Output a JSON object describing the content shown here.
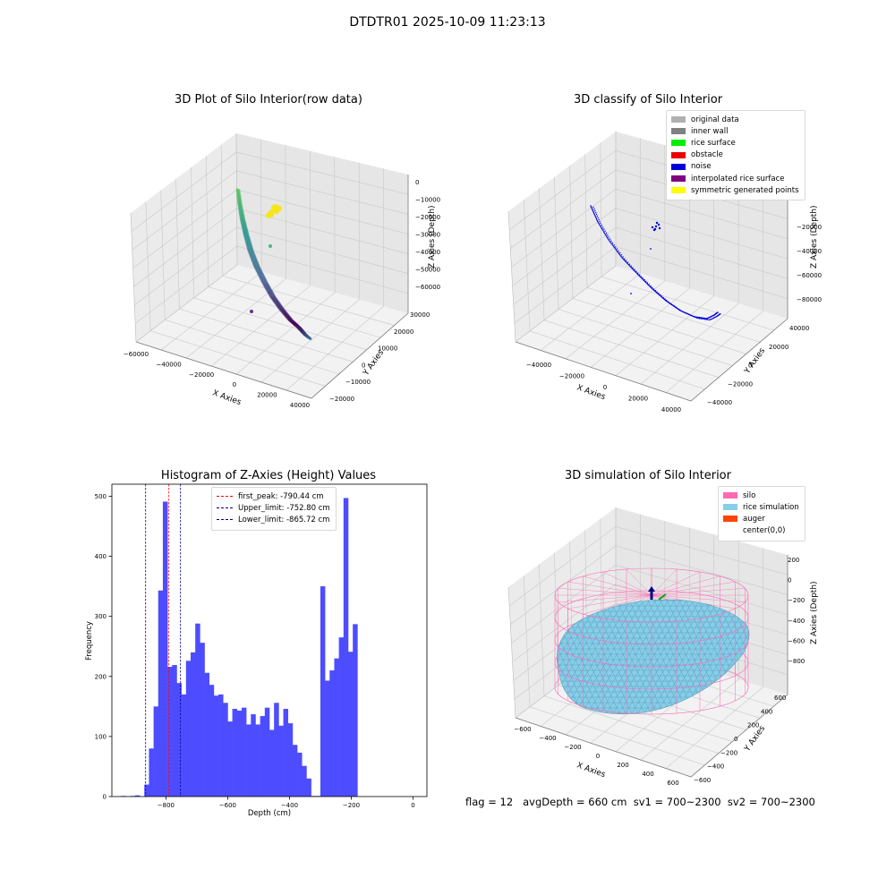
{
  "figure": {
    "suptitle": "DTDTR01 2025-10-09 11:23:13"
  },
  "panels": {
    "raw": {
      "title": "3D Plot of Silo Interior(row data)",
      "xlabel": "X Axies",
      "ylabel": "Y Axies",
      "zlabel": "Z Axies (Depth)",
      "xticks": [
        "−60000",
        "−40000",
        "−20000",
        "0",
        "20000",
        "40000"
      ],
      "yticks": [
        "−20000",
        "−10000",
        "0",
        "10000",
        "20000",
        "30000"
      ],
      "zticks": [
        "0",
        "−10000",
        "−20000",
        "−30000",
        "−40000",
        "−50000",
        "−60000"
      ]
    },
    "classify": {
      "title": "3D classify of Silo Interior",
      "xlabel": "X Axies",
      "ylabel": "Y Axies",
      "zlabel": "Z Axies (Depth)",
      "xticks": [
        "−40000",
        "−20000",
        "0",
        "20000",
        "40000"
      ],
      "yticks": [
        "−40000",
        "−20000",
        "0",
        "20000",
        "40000"
      ],
      "zticks": [
        "−20000",
        "−40000",
        "−60000",
        "−80000"
      ],
      "legend": [
        {
          "label": "original data",
          "color": "#b0b0b0"
        },
        {
          "label": "inner wall",
          "color": "#808080"
        },
        {
          "label": "rice surface",
          "color": "#00ee00"
        },
        {
          "label": "obstacle",
          "color": "#ee0000"
        },
        {
          "label": "noise",
          "color": "#0000dd"
        },
        {
          "label": "interpolated rice surface",
          "color": "#800080"
        },
        {
          "label": "symmetric generated points",
          "color": "#ffff00"
        }
      ]
    },
    "histogram": {
      "title": "Histogram of Z-Axies (Height) Values",
      "xlabel": "Depth (cm)",
      "ylabel": "Frequency",
      "legend": [
        {
          "label": "first_peak: -790.44 cm",
          "color": "#ff0000"
        },
        {
          "label": "Upper_limit: -752.80 cm",
          "color": "#00008b"
        },
        {
          "label": "Lower_limit: -865.72 cm",
          "color": "#00008b"
        }
      ]
    },
    "simulation": {
      "title": "3D simulation of Silo Interior",
      "xlabel": "X Axies",
      "ylabel": "Y Axies",
      "zlabel": "Z Axies (Depth)",
      "xticks": [
        "−600",
        "−400",
        "−200",
        "0",
        "200",
        "400",
        "600"
      ],
      "yticks": [
        "−600",
        "−400",
        "−200",
        "0",
        "200",
        "400",
        "600"
      ],
      "zticks": [
        "200",
        "0",
        "−200",
        "−400",
        "−600",
        "−800"
      ],
      "legend": [
        {
          "label": "silo",
          "color": "#ff69b4"
        },
        {
          "label": "rice simulation",
          "color": "#87ceeb"
        },
        {
          "label": "auger",
          "color": "#ff4500"
        },
        {
          "label": "center(0,0)",
          "color": ""
        }
      ],
      "footer": "flag = 12   avgDepth = 660 cm  sv1 = 700~2300  sv2 = 700~2300"
    }
  },
  "chart_data": [
    {
      "type": "histogram",
      "title": "Histogram of Z-Axies (Height) Values",
      "xlabel": "Depth (cm)",
      "ylabel": "Frequency",
      "xlim": [
        -975,
        45
      ],
      "ylim": [
        0,
        520
      ],
      "xticks": [
        -800,
        -600,
        -400,
        -200,
        0
      ],
      "yticks": [
        0,
        100,
        200,
        300,
        400,
        500
      ],
      "grid": false,
      "legend_position": "top-center",
      "bin_width": 15,
      "bins": [
        {
          "x0": -945,
          "count": 1
        },
        {
          "x0": -930,
          "count": 0
        },
        {
          "x0": -915,
          "count": 1
        },
        {
          "x0": -900,
          "count": 2
        },
        {
          "x0": -885,
          "count": 0
        },
        {
          "x0": -870,
          "count": 20
        },
        {
          "x0": -855,
          "count": 80
        },
        {
          "x0": -840,
          "count": 150
        },
        {
          "x0": -825,
          "count": 343
        },
        {
          "x0": -810,
          "count": 491
        },
        {
          "x0": -795,
          "count": 216
        },
        {
          "x0": -780,
          "count": 219
        },
        {
          "x0": -765,
          "count": 189
        },
        {
          "x0": -750,
          "count": 170
        },
        {
          "x0": -735,
          "count": 226
        },
        {
          "x0": -720,
          "count": 240
        },
        {
          "x0": -705,
          "count": 288
        },
        {
          "x0": -690,
          "count": 256
        },
        {
          "x0": -675,
          "count": 206
        },
        {
          "x0": -660,
          "count": 186
        },
        {
          "x0": -645,
          "count": 168
        },
        {
          "x0": -630,
          "count": 170
        },
        {
          "x0": -615,
          "count": 156
        },
        {
          "x0": -600,
          "count": 125
        },
        {
          "x0": -585,
          "count": 146
        },
        {
          "x0": -570,
          "count": 143
        },
        {
          "x0": -555,
          "count": 148
        },
        {
          "x0": -540,
          "count": 120
        },
        {
          "x0": -525,
          "count": 137
        },
        {
          "x0": -510,
          "count": 120
        },
        {
          "x0": -495,
          "count": 134
        },
        {
          "x0": -480,
          "count": 148
        },
        {
          "x0": -465,
          "count": 111
        },
        {
          "x0": -450,
          "count": 156
        },
        {
          "x0": -435,
          "count": 118
        },
        {
          "x0": -420,
          "count": 146
        },
        {
          "x0": -405,
          "count": 122
        },
        {
          "x0": -390,
          "count": 86
        },
        {
          "x0": -375,
          "count": 73
        },
        {
          "x0": -360,
          "count": 51
        },
        {
          "x0": -345,
          "count": 30
        },
        {
          "x0": -330,
          "count": 1
        },
        {
          "x0": -315,
          "count": 1
        },
        {
          "x0": -300,
          "count": 350
        },
        {
          "x0": -285,
          "count": 193
        },
        {
          "x0": -270,
          "count": 210
        },
        {
          "x0": -255,
          "count": 230
        },
        {
          "x0": -240,
          "count": 265
        },
        {
          "x0": -225,
          "count": 497
        },
        {
          "x0": -210,
          "count": 241
        },
        {
          "x0": -195,
          "count": 287
        }
      ],
      "vlines": [
        {
          "label": "first_peak: -790.44 cm",
          "x": -790.44,
          "color": "#ff0000"
        },
        {
          "label": "Upper_limit: -752.80 cm",
          "x": -752.8,
          "color": "#00008b"
        },
        {
          "label": "Lower_limit: -865.72 cm",
          "x": -865.72,
          "color": "#00008b"
        }
      ],
      "bar_color": "#4d4dff"
    }
  ]
}
